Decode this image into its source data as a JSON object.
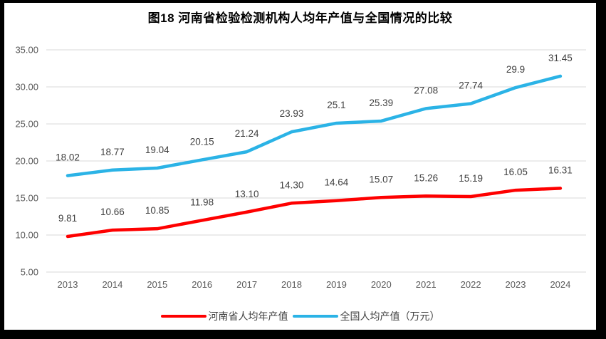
{
  "frame": {
    "background": "#000000",
    "inner_background": "#ffffff"
  },
  "chart_data": {
    "type": "line",
    "title": "图18  河南省检验检测机构人均年产值与全国情况的比较",
    "categories": [
      "2013",
      "2014",
      "2015",
      "2016",
      "2017",
      "2018",
      "2019",
      "2020",
      "2021",
      "2022",
      "2023",
      "2024"
    ],
    "series": [
      {
        "name": "河南省人均年产值",
        "color": "#fe0000",
        "values": [
          9.81,
          10.66,
          10.85,
          11.98,
          13.1,
          14.3,
          14.64,
          15.07,
          15.26,
          15.19,
          16.05,
          16.31
        ],
        "labels": [
          "9.81",
          "10.66",
          "10.85",
          "11.98",
          "13.10",
          "14.30",
          "14.64",
          "15.07",
          "15.26",
          "15.19",
          "16.05",
          "16.31"
        ]
      },
      {
        "name": "全国人均产值（万元）",
        "color": "#2bb3e6",
        "values": [
          18.02,
          18.77,
          19.04,
          20.15,
          21.24,
          23.93,
          25.1,
          25.39,
          27.08,
          27.74,
          29.9,
          31.45
        ],
        "labels": [
          "18.02",
          "18.77",
          "19.04",
          "20.15",
          "21.24",
          "23.93",
          "25.1",
          "25.39",
          "27.08",
          "27.74",
          "29.9",
          "31.45"
        ]
      }
    ],
    "ylim": [
      5,
      35
    ],
    "yticks": [
      "5.00",
      "10.00",
      "15.00",
      "20.00",
      "25.00",
      "30.00",
      "35.00"
    ],
    "grid": true,
    "legend_position": "bottom",
    "xlabel": "",
    "ylabel": "",
    "styles": {
      "gridline_color": "#d9d9d9",
      "axis_text_color": "#595959",
      "data_label_color": "#404040",
      "legend_text_color": "#404040",
      "title_color": "#000000"
    }
  }
}
